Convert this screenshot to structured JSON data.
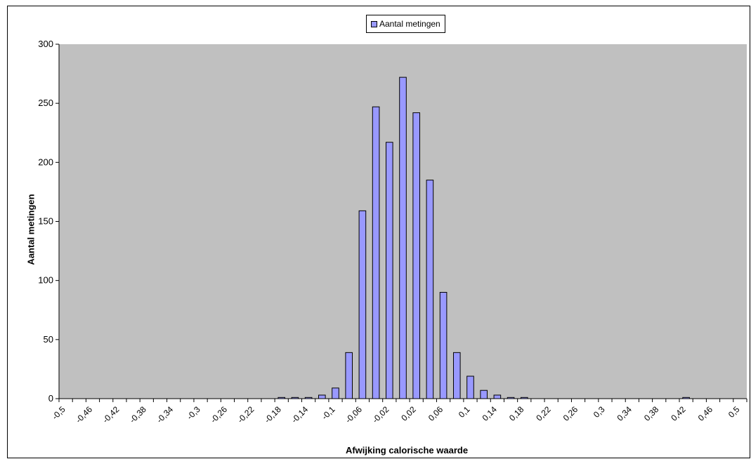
{
  "chart_data": {
    "type": "bar",
    "title": "",
    "xlabel": "Afwijking calorische waarde",
    "ylabel": "Aantal metingen",
    "ylim": [
      0,
      300
    ],
    "yticks": [
      0,
      50,
      100,
      150,
      200,
      250,
      300
    ],
    "xtick_labels": [
      "-0,5",
      "-0,46",
      "-0,42",
      "-0,38",
      "-0,34",
      "-0,3",
      "-0,26",
      "-0,22",
      "-0,18",
      "-0,14",
      "-0,1",
      "-0,06",
      "-0,02",
      "0,02",
      "0,06",
      "0,1",
      "0,14",
      "0,18",
      "0,22",
      "0,26",
      "0,3",
      "0,34",
      "0,38",
      "0,42",
      "0,46",
      "0,5"
    ],
    "grid": false,
    "legend": {
      "position": "top-center",
      "entries": [
        "Aantal metingen"
      ]
    },
    "colors": {
      "bar": "#9999ff",
      "plot_bg": "#c0c0c0"
    },
    "series": [
      {
        "name": "Aantal metingen",
        "x": [
          -0.5,
          -0.48,
          -0.46,
          -0.44,
          -0.42,
          -0.4,
          -0.38,
          -0.36,
          -0.34,
          -0.32,
          -0.3,
          -0.28,
          -0.26,
          -0.24,
          -0.22,
          -0.2,
          -0.18,
          -0.16,
          -0.14,
          -0.12,
          -0.1,
          -0.08,
          -0.06,
          -0.04,
          -0.02,
          0,
          0.02,
          0.04,
          0.06,
          0.08,
          0.1,
          0.12,
          0.14,
          0.16,
          0.18,
          0.2,
          0.22,
          0.24,
          0.26,
          0.28,
          0.3,
          0.32,
          0.34,
          0.36,
          0.38,
          0.4,
          0.42,
          0.44,
          0.46,
          0.48,
          0.5
        ],
        "values": [
          0,
          0,
          0,
          0,
          0,
          0,
          0,
          0,
          0,
          0,
          0,
          0,
          0,
          0,
          0,
          0,
          1,
          1,
          1,
          3,
          9,
          39,
          159,
          247,
          217,
          272,
          242,
          185,
          90,
          39,
          19,
          7,
          3,
          1,
          1,
          0,
          0,
          0,
          0,
          0,
          0,
          0,
          0,
          0,
          0,
          0,
          1,
          0,
          0,
          0,
          0
        ]
      }
    ]
  }
}
